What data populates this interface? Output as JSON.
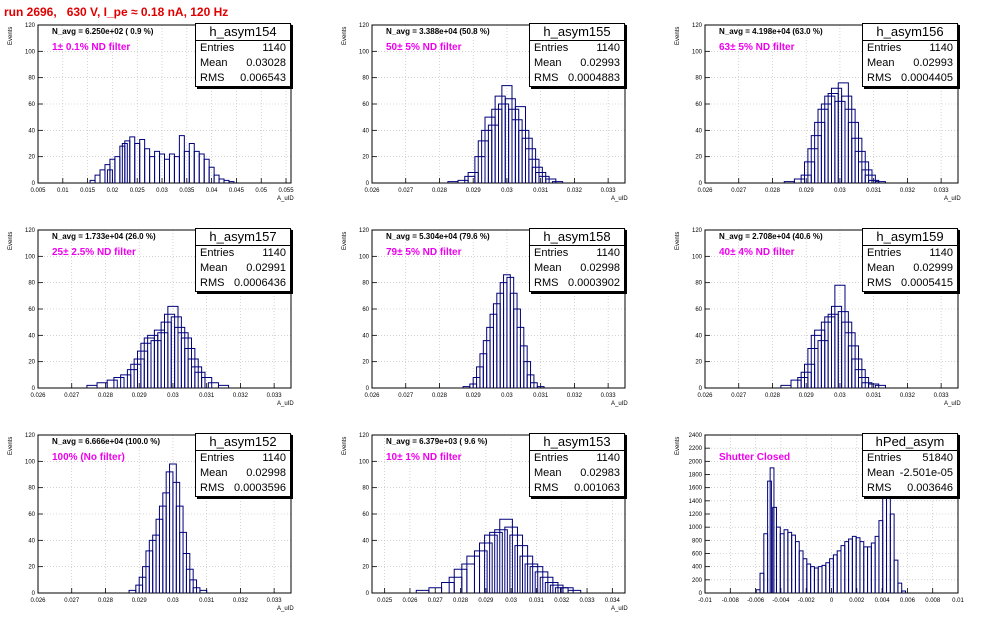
{
  "page_title": "run 2696,   630 V, I_pe ≈ 0.18 nA, 120 Hz",
  "colors": {
    "title": "#e00000",
    "hist": "#00007a",
    "filter_label": "#ee00ee",
    "grid": "#b8b8b8"
  },
  "panels": [
    {
      "name": "h_asym154",
      "entries": "1140",
      "mean": "0.03028",
      "rms": "0.006543",
      "navg": "N_avg = 6.250e+02 ( 0.9 %)",
      "filter": "1± 0.1% ND filter",
      "ylabel": "Events",
      "xlabel": "A_uID"
    },
    {
      "name": "h_asym155",
      "entries": "1140",
      "mean": "0.02993",
      "rms": "0.0004883",
      "navg": "N_avg = 3.388e+04 (50.8 %)",
      "filter": "50± 5% ND filter",
      "ylabel": "Events",
      "xlabel": "A_uID"
    },
    {
      "name": "h_asym156",
      "entries": "1140",
      "mean": "0.02993",
      "rms": "0.0004405",
      "navg": "N_avg = 4.198e+04 (63.0 %)",
      "filter": "63± 5% ND filter",
      "ylabel": "Events",
      "xlabel": "A_uID"
    },
    {
      "name": "h_asym157",
      "entries": "1140",
      "mean": "0.02991",
      "rms": "0.0006436",
      "navg": "N_avg = 1.733e+04 (26.0 %)",
      "filter": "25± 2.5% ND filter",
      "ylabel": "Events",
      "xlabel": "A_uID"
    },
    {
      "name": "h_asym158",
      "entries": "1140",
      "mean": "0.02998",
      "rms": "0.0003902",
      "navg": "N_avg = 5.304e+04 (79.6 %)",
      "filter": "79± 5% ND filter",
      "ylabel": "Events",
      "xlabel": "A_uID"
    },
    {
      "name": "h_asym159",
      "entries": "1140",
      "mean": "0.02999",
      "rms": "0.0005415",
      "navg": "N_avg = 2.708e+04 (40.6 %)",
      "filter": "40± 4% ND filter",
      "ylabel": "Events",
      "xlabel": "A_uID"
    },
    {
      "name": "h_asym152",
      "entries": "1140",
      "mean": "0.02998",
      "rms": "0.0003596",
      "navg": "N_avg = 6.666e+04 (100.0 %)",
      "filter": "100% (No filter)",
      "ylabel": "Events",
      "xlabel": "A_uID"
    },
    {
      "name": "h_asym153",
      "entries": "1140",
      "mean": "0.02983",
      "rms": "0.001063",
      "navg": "N_avg = 6.379e+03 ( 9.6 %)",
      "filter": "10± 1% ND filter",
      "ylabel": "Events",
      "xlabel": "A_uID"
    },
    {
      "name": "hPed_asym",
      "entries": "51840",
      "mean": "-2.501e-05",
      "rms": "0.003646",
      "navg": "",
      "filter": "Shutter Closed",
      "ylabel": "Events",
      "xlabel": ""
    }
  ],
  "chart_data": [
    {
      "type": "bar",
      "title": "h_asym154",
      "ylim": [
        0,
        120
      ],
      "xlim": [
        0.005,
        0.056
      ],
      "grid": true,
      "xticks": [
        "0.005",
        "0.01",
        "0.015",
        "0.02",
        "0.025",
        "0.03",
        "0.035",
        "0.04",
        "0.045",
        "0.05",
        "0.055"
      ],
      "yticks": [
        "0",
        "20",
        "40",
        "60",
        "80",
        "100",
        "120"
      ],
      "bins": [
        [
          0.016,
          2
        ],
        [
          0.017,
          6
        ],
        [
          0.018,
          10
        ],
        [
          0.019,
          14
        ],
        [
          0.0195,
          10
        ],
        [
          0.02,
          18
        ],
        [
          0.021,
          20
        ],
        [
          0.022,
          28
        ],
        [
          0.0225,
          30
        ],
        [
          0.023,
          32
        ],
        [
          0.024,
          35
        ],
        [
          0.025,
          30
        ],
        [
          0.026,
          33
        ],
        [
          0.027,
          26
        ],
        [
          0.028,
          20
        ],
        [
          0.029,
          24
        ],
        [
          0.03,
          22
        ],
        [
          0.031,
          18
        ],
        [
          0.032,
          22
        ],
        [
          0.033,
          20
        ],
        [
          0.034,
          36
        ],
        [
          0.035,
          24
        ],
        [
          0.036,
          30
        ],
        [
          0.037,
          24
        ],
        [
          0.038,
          22
        ],
        [
          0.039,
          18
        ],
        [
          0.04,
          12
        ],
        [
          0.041,
          6
        ],
        [
          0.042,
          3
        ],
        [
          0.043,
          2
        ],
        [
          0.044,
          1
        ]
      ]
    },
    {
      "type": "bar",
      "title": "h_asym155",
      "ylim": [
        0,
        120
      ],
      "xlim": [
        0.026,
        0.0335
      ],
      "grid": true,
      "xticks": [
        "0.026",
        "0.027",
        "0.028",
        "0.029",
        "0.03",
        "0.031",
        "0.032",
        "0.033"
      ],
      "yticks": [
        "0",
        "20",
        "40",
        "60",
        "80",
        "100",
        "120"
      ],
      "bins": [
        [
          0.0284,
          1
        ],
        [
          0.0287,
          2
        ],
        [
          0.0289,
          5
        ],
        [
          0.029,
          8
        ],
        [
          0.0292,
          20
        ],
        [
          0.0293,
          32
        ],
        [
          0.0294,
          40
        ],
        [
          0.0295,
          50
        ],
        [
          0.0296,
          44
        ],
        [
          0.0297,
          56
        ],
        [
          0.0298,
          66
        ],
        [
          0.0299,
          60
        ],
        [
          0.03,
          74
        ],
        [
          0.0301,
          64
        ],
        [
          0.0302,
          56
        ],
        [
          0.0303,
          48
        ],
        [
          0.0304,
          58
        ],
        [
          0.0305,
          40
        ],
        [
          0.0306,
          34
        ],
        [
          0.0307,
          26
        ],
        [
          0.0308,
          18
        ],
        [
          0.0309,
          12
        ],
        [
          0.031,
          8
        ],
        [
          0.0311,
          5
        ],
        [
          0.0313,
          3
        ],
        [
          0.0315,
          1
        ]
      ]
    },
    {
      "type": "bar",
      "title": "h_asym156",
      "ylim": [
        0,
        120
      ],
      "xlim": [
        0.026,
        0.0335
      ],
      "grid": true,
      "xticks": [
        "0.026",
        "0.027",
        "0.028",
        "0.029",
        "0.03",
        "0.031",
        "0.032",
        "0.033"
      ],
      "yticks": [
        "0",
        "20",
        "40",
        "60",
        "80",
        "100",
        "120"
      ],
      "bins": [
        [
          0.0285,
          1
        ],
        [
          0.0288,
          3
        ],
        [
          0.029,
          6
        ],
        [
          0.0291,
          16
        ],
        [
          0.0292,
          26
        ],
        [
          0.0293,
          36
        ],
        [
          0.0294,
          46
        ],
        [
          0.0295,
          56
        ],
        [
          0.0296,
          60
        ],
        [
          0.0297,
          66
        ],
        [
          0.0298,
          68
        ],
        [
          0.0299,
          72
        ],
        [
          0.03,
          62
        ],
        [
          0.0301,
          76
        ],
        [
          0.0302,
          66
        ],
        [
          0.0303,
          56
        ],
        [
          0.0304,
          46
        ],
        [
          0.0305,
          34
        ],
        [
          0.0306,
          24
        ],
        [
          0.0307,
          16
        ],
        [
          0.0308,
          10
        ],
        [
          0.0309,
          6
        ],
        [
          0.031,
          2
        ],
        [
          0.0312,
          1
        ]
      ]
    },
    {
      "type": "bar",
      "title": "h_asym157",
      "ylim": [
        0,
        120
      ],
      "xlim": [
        0.026,
        0.0335
      ],
      "grid": true,
      "xticks": [
        "0.026",
        "0.027",
        "0.028",
        "0.029",
        "0.03",
        "0.031",
        "0.032",
        "0.033"
      ],
      "yticks": [
        "0",
        "20",
        "40",
        "60",
        "80",
        "100",
        "120"
      ],
      "bins": [
        [
          0.0276,
          2
        ],
        [
          0.0279,
          4
        ],
        [
          0.0282,
          6
        ],
        [
          0.0284,
          8
        ],
        [
          0.0286,
          10
        ],
        [
          0.0288,
          14
        ],
        [
          0.0289,
          18
        ],
        [
          0.029,
          22
        ],
        [
          0.0291,
          28
        ],
        [
          0.0292,
          34
        ],
        [
          0.0293,
          38
        ],
        [
          0.0294,
          40
        ],
        [
          0.0295,
          36
        ],
        [
          0.0296,
          44
        ],
        [
          0.0297,
          42
        ],
        [
          0.0298,
          50
        ],
        [
          0.0299,
          56
        ],
        [
          0.03,
          62
        ],
        [
          0.0301,
          54
        ],
        [
          0.0302,
          46
        ],
        [
          0.0303,
          42
        ],
        [
          0.0304,
          38
        ],
        [
          0.0305,
          30
        ],
        [
          0.0306,
          22
        ],
        [
          0.0307,
          16
        ],
        [
          0.0308,
          12
        ],
        [
          0.031,
          8
        ],
        [
          0.0312,
          4
        ],
        [
          0.0315,
          2
        ]
      ]
    },
    {
      "type": "bar",
      "title": "h_asym158",
      "ylim": [
        0,
        120
      ],
      "xlim": [
        0.026,
        0.0335
      ],
      "grid": true,
      "xticks": [
        "0.026",
        "0.027",
        "0.028",
        "0.029",
        "0.03",
        "0.031",
        "0.032",
        "0.033"
      ],
      "yticks": [
        "0",
        "20",
        "40",
        "60",
        "80",
        "100",
        "120"
      ],
      "bins": [
        [
          0.0288,
          1
        ],
        [
          0.029,
          3
        ],
        [
          0.0291,
          8
        ],
        [
          0.0292,
          16
        ],
        [
          0.0293,
          26
        ],
        [
          0.0294,
          36
        ],
        [
          0.0295,
          46
        ],
        [
          0.0296,
          56
        ],
        [
          0.0297,
          64
        ],
        [
          0.0298,
          72
        ],
        [
          0.0299,
          80
        ],
        [
          0.03,
          86
        ],
        [
          0.0301,
          84
        ],
        [
          0.0302,
          72
        ],
        [
          0.0303,
          60
        ],
        [
          0.0304,
          46
        ],
        [
          0.0305,
          32
        ],
        [
          0.0306,
          20
        ],
        [
          0.0307,
          10
        ],
        [
          0.0308,
          4
        ],
        [
          0.031,
          1
        ]
      ]
    },
    {
      "type": "bar",
      "title": "h_asym159",
      "ylim": [
        0,
        120
      ],
      "xlim": [
        0.026,
        0.0335
      ],
      "grid": true,
      "xticks": [
        "0.026",
        "0.027",
        "0.028",
        "0.029",
        "0.03",
        "0.031",
        "0.032",
        "0.033"
      ],
      "yticks": [
        "0",
        "20",
        "40",
        "60",
        "80",
        "100",
        "120"
      ],
      "bins": [
        [
          0.0284,
          2
        ],
        [
          0.0287,
          6
        ],
        [
          0.0289,
          8
        ],
        [
          0.029,
          12
        ],
        [
          0.0291,
          18
        ],
        [
          0.0292,
          30
        ],
        [
          0.0293,
          40
        ],
        [
          0.0294,
          44
        ],
        [
          0.0295,
          36
        ],
        [
          0.0296,
          50
        ],
        [
          0.0297,
          54
        ],
        [
          0.0298,
          56
        ],
        [
          0.0299,
          62
        ],
        [
          0.03,
          78
        ],
        [
          0.0301,
          58
        ],
        [
          0.0302,
          50
        ],
        [
          0.0303,
          42
        ],
        [
          0.0304,
          32
        ],
        [
          0.0305,
          22
        ],
        [
          0.0306,
          14
        ],
        [
          0.0307,
          8
        ],
        [
          0.0308,
          4
        ],
        [
          0.031,
          3
        ],
        [
          0.0312,
          2
        ]
      ]
    },
    {
      "type": "bar",
      "title": "h_asym152",
      "ylim": [
        0,
        120
      ],
      "xlim": [
        0.026,
        0.0335
      ],
      "grid": true,
      "xticks": [
        "0.026",
        "0.027",
        "0.028",
        "0.029",
        "0.03",
        "0.031",
        "0.032",
        "0.033"
      ],
      "yticks": [
        "0",
        "20",
        "40",
        "60",
        "80",
        "100",
        "120"
      ],
      "bins": [
        [
          0.0288,
          2
        ],
        [
          0.029,
          6
        ],
        [
          0.0291,
          12
        ],
        [
          0.0292,
          20
        ],
        [
          0.0293,
          32
        ],
        [
          0.0294,
          40
        ],
        [
          0.0295,
          44
        ],
        [
          0.0296,
          56
        ],
        [
          0.0297,
          66
        ],
        [
          0.0298,
          76
        ],
        [
          0.0299,
          92
        ],
        [
          0.03,
          98
        ],
        [
          0.0301,
          84
        ],
        [
          0.0302,
          66
        ],
        [
          0.0303,
          46
        ],
        [
          0.0304,
          30
        ],
        [
          0.0305,
          18
        ],
        [
          0.0306,
          10
        ],
        [
          0.0307,
          4
        ],
        [
          0.0309,
          2
        ]
      ]
    },
    {
      "type": "bar",
      "title": "h_asym153",
      "ylim": [
        0,
        120
      ],
      "xlim": [
        0.0245,
        0.0345
      ],
      "grid": true,
      "xticks": [
        "0.025",
        "0.026",
        "0.027",
        "0.028",
        "0.029",
        "0.03",
        "0.031",
        "0.032",
        "0.033",
        "0.034"
      ],
      "yticks": [
        "0",
        "20",
        "40",
        "60",
        "80",
        "100",
        "120"
      ],
      "bins": [
        [
          0.0265,
          2
        ],
        [
          0.027,
          4
        ],
        [
          0.0275,
          8
        ],
        [
          0.0278,
          12
        ],
        [
          0.028,
          18
        ],
        [
          0.0283,
          22
        ],
        [
          0.0285,
          28
        ],
        [
          0.0288,
          32
        ],
        [
          0.029,
          38
        ],
        [
          0.0292,
          44
        ],
        [
          0.0294,
          46
        ],
        [
          0.0296,
          48
        ],
        [
          0.0298,
          56
        ],
        [
          0.03,
          50
        ],
        [
          0.0302,
          44
        ],
        [
          0.0304,
          36
        ],
        [
          0.0306,
          28
        ],
        [
          0.0308,
          22
        ],
        [
          0.031,
          20
        ],
        [
          0.0312,
          16
        ],
        [
          0.0314,
          12
        ],
        [
          0.0316,
          8
        ],
        [
          0.0318,
          6
        ],
        [
          0.032,
          4
        ],
        [
          0.0322,
          4
        ],
        [
          0.0325,
          2
        ]
      ]
    },
    {
      "type": "bar",
      "title": "hPed_asym",
      "ylim": [
        0,
        2400
      ],
      "xlim": [
        -0.01,
        0.01
      ],
      "grid": true,
      "xticks": [
        "-0.01",
        "-0.008",
        "-0.006",
        "-0.004",
        "-0.002",
        "0",
        "0.002",
        "0.004",
        "0.006",
        "0.008",
        "0.01"
      ],
      "yticks": [
        "0",
        "200",
        "400",
        "600",
        "800",
        "1000",
        "1200",
        "1400",
        "1600",
        "1800",
        "2000",
        "2200",
        "2400"
      ],
      "bins": [
        [
          -0.0058,
          50
        ],
        [
          -0.0055,
          300
        ],
        [
          -0.0052,
          900
        ],
        [
          -0.0049,
          1700
        ],
        [
          -0.0047,
          1900
        ],
        [
          -0.0045,
          1300
        ],
        [
          -0.0042,
          1000
        ],
        [
          -0.0039,
          900
        ],
        [
          -0.0036,
          960
        ],
        [
          -0.0033,
          920
        ],
        [
          -0.003,
          880
        ],
        [
          -0.0027,
          780
        ],
        [
          -0.0024,
          640
        ],
        [
          -0.0021,
          520
        ],
        [
          -0.0018,
          440
        ],
        [
          -0.0015,
          400
        ],
        [
          -0.0012,
          380
        ],
        [
          -0.0009,
          400
        ],
        [
          -0.0006,
          420
        ],
        [
          -0.0003,
          460
        ],
        [
          0.0,
          520
        ],
        [
          0.0003,
          580
        ],
        [
          0.0006,
          640
        ],
        [
          0.0009,
          720
        ],
        [
          0.0012,
          780
        ],
        [
          0.0015,
          820
        ],
        [
          0.0018,
          860
        ],
        [
          0.0021,
          840
        ],
        [
          0.0024,
          780
        ],
        [
          0.0027,
          700
        ],
        [
          0.003,
          700
        ],
        [
          0.0033,
          760
        ],
        [
          0.0036,
          860
        ],
        [
          0.0039,
          1100
        ],
        [
          0.0042,
          1500
        ],
        [
          0.0045,
          1700
        ],
        [
          0.0048,
          1200
        ],
        [
          0.0051,
          500
        ],
        [
          0.0054,
          150
        ],
        [
          0.0057,
          30
        ]
      ]
    }
  ]
}
